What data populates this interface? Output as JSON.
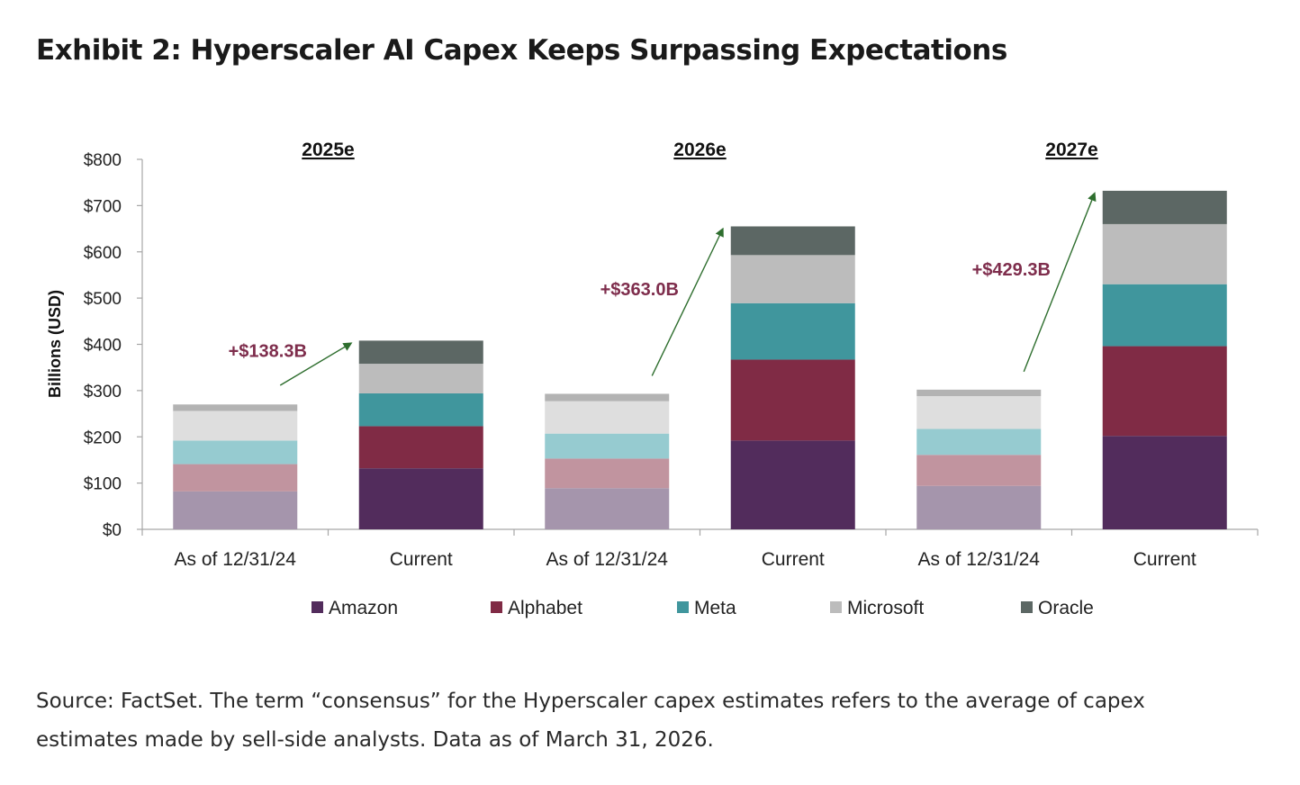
{
  "title": "Exhibit 2: Hyperscaler AI Capex Keeps Surpassing Expectations",
  "source_note": "Source: FactSet. The term “consensus” for the Hyperscaler capex estimates refers to the average of capex estimates made by sell-side analysts. Data as of March 31, 2026.",
  "chart_data": {
    "type": "bar",
    "stacked": true,
    "ylabel": "Billions (USD)",
    "ylim": [
      0,
      800
    ],
    "yticks": [
      "$0",
      "$100",
      "$200",
      "$300",
      "$400",
      "$500",
      "$600",
      "$700",
      "$800"
    ],
    "ytick_values": [
      0,
      100,
      200,
      300,
      400,
      500,
      600,
      700,
      800
    ],
    "groups": [
      {
        "title": "2025e",
        "delta_label": "+$138.3B",
        "bars": [
          {
            "label": "As of 12/31/24",
            "estimate": "prior",
            "values": [
              82,
              59,
              51,
              64,
              14
            ]
          },
          {
            "label": "Current",
            "estimate": "current",
            "values": [
              132,
              91,
              71,
              64,
              50
            ]
          }
        ]
      },
      {
        "title": "2026e",
        "delta_label": "+$363.0B",
        "bars": [
          {
            "label": "As of 12/31/24",
            "estimate": "prior",
            "values": [
              89,
              64,
              54,
              70,
              16
            ]
          },
          {
            "label": "Current",
            "estimate": "current",
            "values": [
              192,
              175,
              122,
              104,
              62
            ]
          }
        ]
      },
      {
        "title": "2027e",
        "delta_label": "+$429.3B",
        "bars": [
          {
            "label": "As of 12/31/24",
            "estimate": "prior",
            "values": [
              94,
              67,
              56,
              71,
              14
            ]
          },
          {
            "label": "Current",
            "estimate": "current",
            "values": [
              202,
              194,
              134,
              130,
              72
            ]
          }
        ]
      }
    ],
    "series": [
      {
        "name": "Amazon",
        "color": "#522c5c",
        "color_prior": "#a595ac"
      },
      {
        "name": "Alphabet",
        "color": "#802b45",
        "color_prior": "#c1949f"
      },
      {
        "name": "Meta",
        "color": "#40969d",
        "color_prior": "#96cbd0"
      },
      {
        "name": "Microsoft",
        "color": "#bcbcbc",
        "color_prior": "#dedede"
      },
      {
        "name": "Oracle",
        "color": "#5c6764",
        "color_prior": "#b3b3b3"
      }
    ],
    "delta_color": "#7e2d4c",
    "arrow_color": "#2e6e2e",
    "legend_position": "bottom",
    "grid": false
  }
}
